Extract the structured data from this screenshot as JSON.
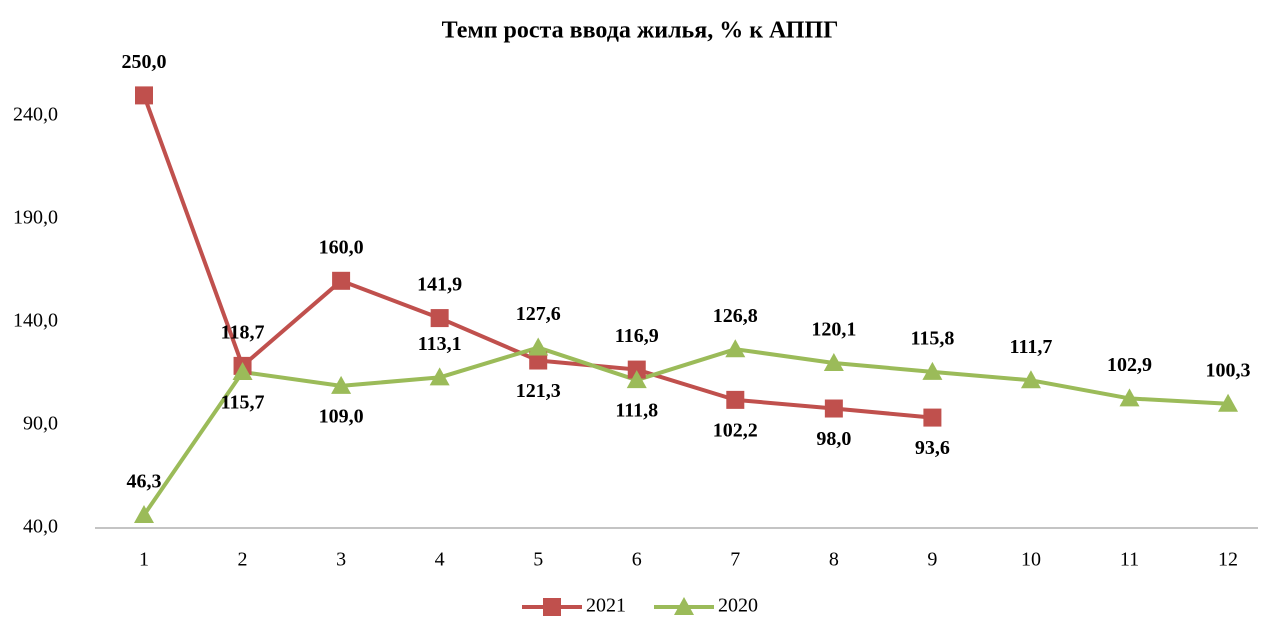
{
  "chart_data": {
    "type": "line",
    "title": "Темп роста ввода жилья, % к АППГ",
    "categories": [
      "1",
      "2",
      "3",
      "4",
      "5",
      "6",
      "7",
      "8",
      "9",
      "10",
      "11",
      "12"
    ],
    "series": [
      {
        "name": "2021",
        "color": "#c0504d",
        "marker": "square",
        "values": [
          250.0,
          118.7,
          160.0,
          141.9,
          121.3,
          116.9,
          102.2,
          98.0,
          93.6,
          null,
          null,
          null
        ],
        "value_labels": [
          "250,0",
          "118,7",
          "160,0",
          "141,9",
          "121,3",
          "116,9",
          "102,2",
          "98,0",
          "93,6",
          null,
          null,
          null
        ]
      },
      {
        "name": "2020",
        "color": "#9bbb59",
        "marker": "triangle",
        "values": [
          46.3,
          115.7,
          109.0,
          113.1,
          127.6,
          111.8,
          126.8,
          120.1,
          115.8,
          111.7,
          102.9,
          100.3
        ],
        "value_labels": [
          "46,3",
          "115,7",
          "109,0",
          "113,1",
          "127,6",
          "111,8",
          "126,8",
          "120,1",
          "115,8",
          "111,7",
          "102,9",
          "100,3"
        ]
      }
    ],
    "ylim": [
      40,
      290
    ],
    "yticks": [
      {
        "value": 40,
        "label": "40,0"
      },
      {
        "value": 90,
        "label": "90,0"
      },
      {
        "value": 140,
        "label": "140,0"
      },
      {
        "value": 190,
        "label": "190,0"
      },
      {
        "value": 240,
        "label": "240,0"
      }
    ],
    "grid": false,
    "legend": "bottom"
  }
}
